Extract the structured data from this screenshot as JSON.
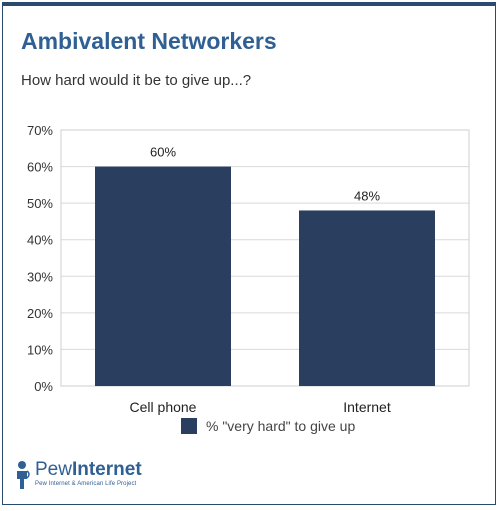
{
  "title": "Ambivalent Networkers",
  "subtitle": "How hard would it be to give up...?",
  "colors": {
    "bar": "#2a3f5f",
    "accent": "#2f5f93",
    "grid": "#d9d9d9"
  },
  "legend_label": "% \"very hard\" to give up",
  "logo": {
    "icon": "pew-person-icon",
    "word1": "Pew",
    "word2": "Internet",
    "tagline": "Pew Internet & American Life Project"
  },
  "chart_data": {
    "type": "bar",
    "categories": [
      "Cell phone",
      "Internet"
    ],
    "series": [
      {
        "name": "% \"very hard\" to give up",
        "values": [
          60,
          48
        ]
      }
    ],
    "data_labels": [
      "60%",
      "48%"
    ],
    "yticks": [
      "0%",
      "10%",
      "20%",
      "30%",
      "40%",
      "50%",
      "60%",
      "70%"
    ],
    "ylim": [
      0,
      70
    ],
    "grid": true,
    "legend_position": "bottom"
  }
}
